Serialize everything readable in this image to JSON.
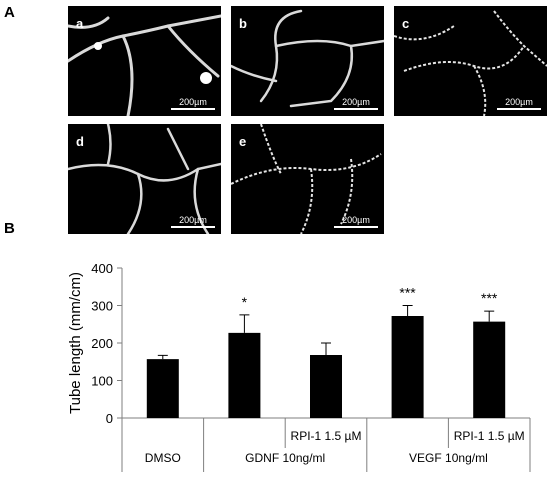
{
  "figure": {
    "panel_a_label": "A",
    "panel_b_label": "B",
    "micrographs": [
      {
        "label": "a",
        "scale": "200µm"
      },
      {
        "label": "b",
        "scale": "200µm"
      },
      {
        "label": "c",
        "scale": "200µm"
      },
      {
        "label": "d",
        "scale": "200µm"
      },
      {
        "label": "e",
        "scale": "200µm"
      }
    ]
  },
  "chart_data": {
    "type": "bar",
    "ylabel": "Tube length (mm/cm)",
    "ylim": [
      0,
      400
    ],
    "yticks": [
      0,
      100,
      200,
      300,
      400
    ],
    "values": [
      157,
      227,
      168,
      272,
      257
    ],
    "errors": [
      10,
      48,
      32,
      28,
      28
    ],
    "significance": [
      "",
      "*",
      "",
      "***",
      "***"
    ],
    "treatment_labels": [
      "",
      "",
      "RPI-1 1.5 µM",
      "",
      "RPI-1 1.5 µM"
    ],
    "groups": [
      "DMSO",
      "GDNF 10ng/ml",
      "VEGF 10ng/ml"
    ],
    "group_spans": [
      [
        0,
        1
      ],
      [
        1,
        3
      ],
      [
        3,
        5
      ]
    ],
    "colors": {
      "bar": "#000000",
      "axis": "#7f7f7f"
    }
  }
}
